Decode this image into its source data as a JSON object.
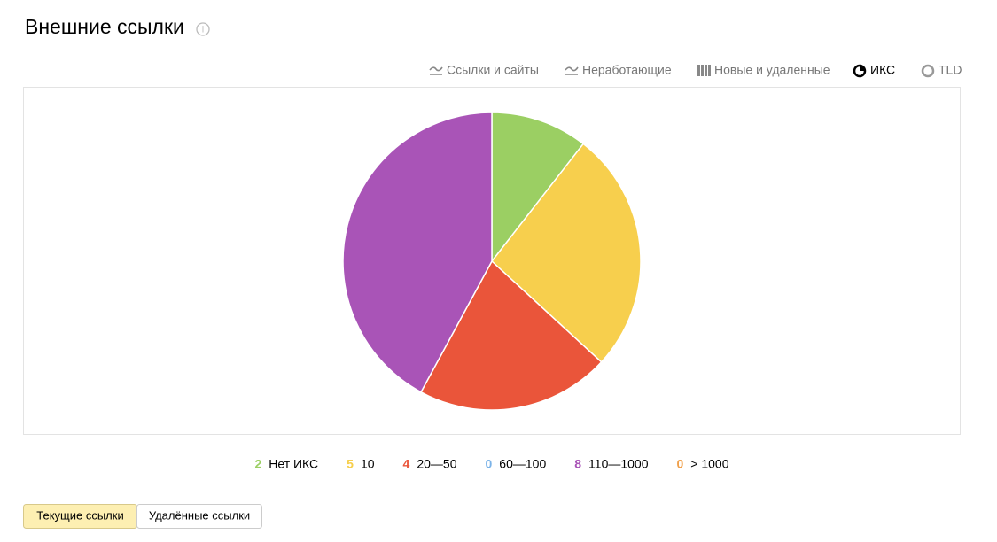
{
  "header": {
    "title": "Внешние ссылки"
  },
  "tabs": [
    "Ссылки и сайты",
    "Неработающие",
    "Новые и удаленные",
    "ИКС",
    "TLD"
  ],
  "chart_data": {
    "type": "pie",
    "categories": [
      "Нет ИКС",
      "10",
      "20—50",
      "60—100",
      "110—1000",
      "> 1000"
    ],
    "values": [
      2,
      5,
      4,
      0,
      8,
      0
    ],
    "colors": [
      "#9bcf63",
      "#f7cf4d",
      "#ea553a",
      "#7bb3e8",
      "#a954b7",
      "#f0a04b"
    ]
  },
  "buttons": [
    "Текущие ссылки",
    "Удалённые ссылки"
  ]
}
